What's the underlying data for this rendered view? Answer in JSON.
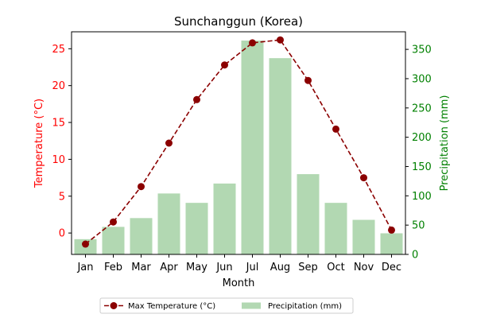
{
  "chart_data": {
    "type": "bar+line",
    "title": "Sunchanggun (Korea)",
    "xlabel": "Month",
    "categories": [
      "Jan",
      "Feb",
      "Mar",
      "Apr",
      "May",
      "Jun",
      "Jul",
      "Aug",
      "Sep",
      "Oct",
      "Nov",
      "Dec"
    ],
    "y_left": {
      "label": "Temperature (°C)",
      "color": "#ff0000",
      "lim": [
        -2.9,
        27.3
      ],
      "ticks": [
        0,
        5,
        10,
        15,
        20,
        25
      ]
    },
    "y_right": {
      "label": "Precipitation (mm)",
      "color": "#008000",
      "lim": [
        0,
        380
      ],
      "ticks": [
        0,
        50,
        100,
        150,
        200,
        250,
        300,
        350
      ]
    },
    "series": [
      {
        "name": "Max Temperature (°C)",
        "type": "line",
        "axis": "left",
        "color": "#8b0000",
        "line_style": "dashed",
        "marker": "circle",
        "values": [
          -1.5,
          1.5,
          6.3,
          12.2,
          18.1,
          22.8,
          25.8,
          26.2,
          20.7,
          14.1,
          7.5,
          0.4
        ]
      },
      {
        "name": "Precipitation (mm)",
        "type": "bar",
        "axis": "right",
        "color": "#b2d8b2",
        "values": [
          26,
          47,
          62,
          104,
          88,
          121,
          365,
          335,
          137,
          88,
          59,
          36
        ]
      }
    ],
    "legend": {
      "position": "bottom-center",
      "columns": 2
    },
    "grid": false
  }
}
